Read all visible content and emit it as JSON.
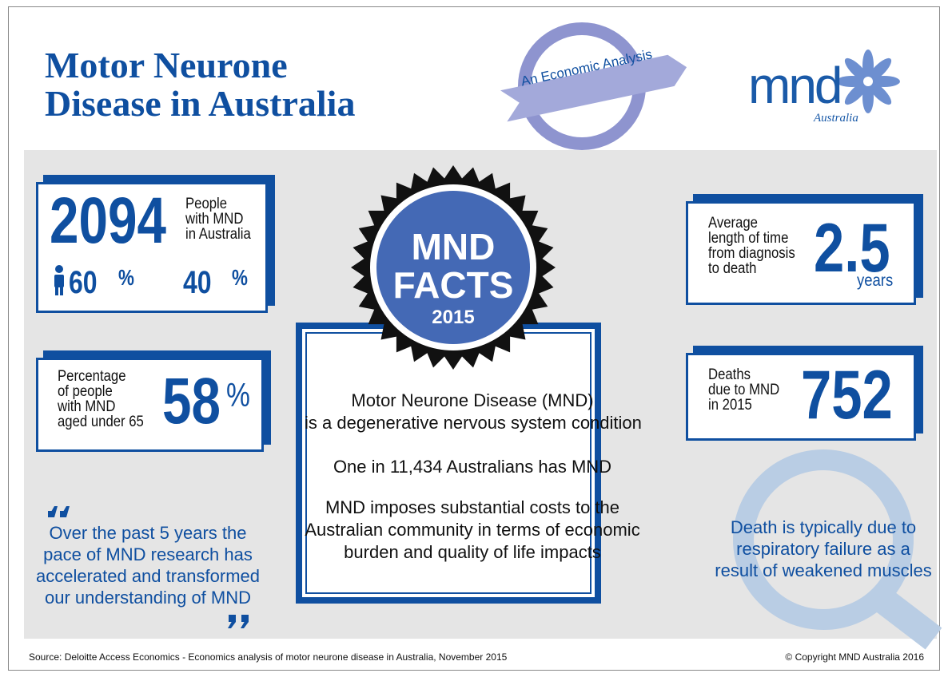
{
  "header": {
    "title": [
      "Motor Neurone",
      "Disease in Australia"
    ],
    "ribbon": "An Economic Analysis",
    "logo": {
      "name": "mnd",
      "region": "Australia"
    }
  },
  "badge": {
    "lines": [
      "MND",
      "FACTS"
    ],
    "year": "2015"
  },
  "summary": [
    [
      "Motor Neurone Disease (MND)",
      "is a degenerative nervous system condition"
    ],
    [
      "One in 11,434 Australians has MND"
    ],
    [
      "MND imposes substantial costs to the",
      "Australian community in terms of economic",
      "burden and quality of life impacts"
    ]
  ],
  "stats": {
    "people": {
      "value": "2094",
      "label": [
        "People",
        "with MND",
        "in Australia"
      ],
      "male": "60",
      "female": "40",
      "unit": "%"
    },
    "under_65": {
      "label": [
        "Percentage",
        "of people",
        "with MND",
        "aged under 65"
      ],
      "value": "58",
      "unit": "%"
    },
    "survival": {
      "label": [
        "Average",
        "length of time",
        "from diagnosis",
        "to death"
      ],
      "value": "2.5",
      "unit": "years"
    },
    "deaths": {
      "label": [
        "Deaths",
        "due to MND",
        "in 2015"
      ],
      "value": "752"
    }
  },
  "quote": [
    "Over the past 5 years the",
    "pace of MND research has",
    "accelerated and transformed",
    "our understanding of MND"
  ],
  "cause": [
    "Death is typically due to",
    "respiratory failure as a",
    "result of weakened muscles"
  ],
  "footer": {
    "source": "Source: Deloitte Access Economics - Economics analysis of motor neurone disease in Australia, November 2015",
    "copyright": "© Copyright MND Australia 2016"
  }
}
